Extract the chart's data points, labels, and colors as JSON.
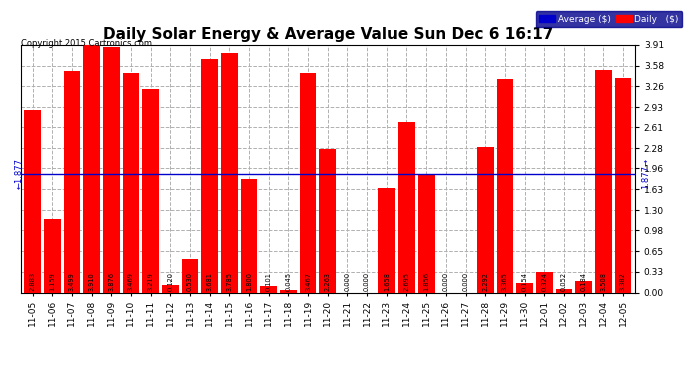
{
  "title": "Daily Solar Energy & Average Value Sun Dec 6 16:17",
  "copyright": "Copyright 2015 Cartronics.com",
  "categories": [
    "11-05",
    "11-06",
    "11-07",
    "11-08",
    "11-09",
    "11-10",
    "11-11",
    "11-12",
    "11-13",
    "11-14",
    "11-15",
    "11-16",
    "11-17",
    "11-18",
    "11-19",
    "11-20",
    "11-21",
    "11-22",
    "11-23",
    "11-24",
    "11-25",
    "11-26",
    "11-27",
    "11-28",
    "11-29",
    "11-30",
    "12-01",
    "12-02",
    "12-03",
    "12-04",
    "12-05"
  ],
  "values": [
    2.883,
    1.159,
    3.499,
    3.91,
    3.876,
    3.469,
    3.219,
    0.12,
    0.53,
    3.681,
    3.785,
    1.8,
    0.101,
    0.045,
    3.467,
    2.263,
    0.0,
    0.0,
    1.658,
    2.695,
    1.856,
    0.0,
    0.0,
    2.292,
    3.365,
    0.154,
    0.324,
    0.052,
    0.184,
    3.508,
    3.382
  ],
  "average": 1.877,
  "bar_color": "#ff0000",
  "average_color": "#0000cc",
  "ylim": [
    0,
    3.91
  ],
  "yticks": [
    0.0,
    0.33,
    0.65,
    0.98,
    1.3,
    1.63,
    1.96,
    2.28,
    2.61,
    2.93,
    3.26,
    3.58,
    3.91
  ],
  "background_color": "#ffffff",
  "grid_color": "#b0b0b0",
  "title_fontsize": 11,
  "label_fontsize": 6,
  "tick_fontsize": 6.5,
  "legend_avg_color": "#0000cc",
  "legend_daily_color": "#ff0000",
  "avg_label": "Average ($)",
  "daily_label": "Daily   ($)"
}
